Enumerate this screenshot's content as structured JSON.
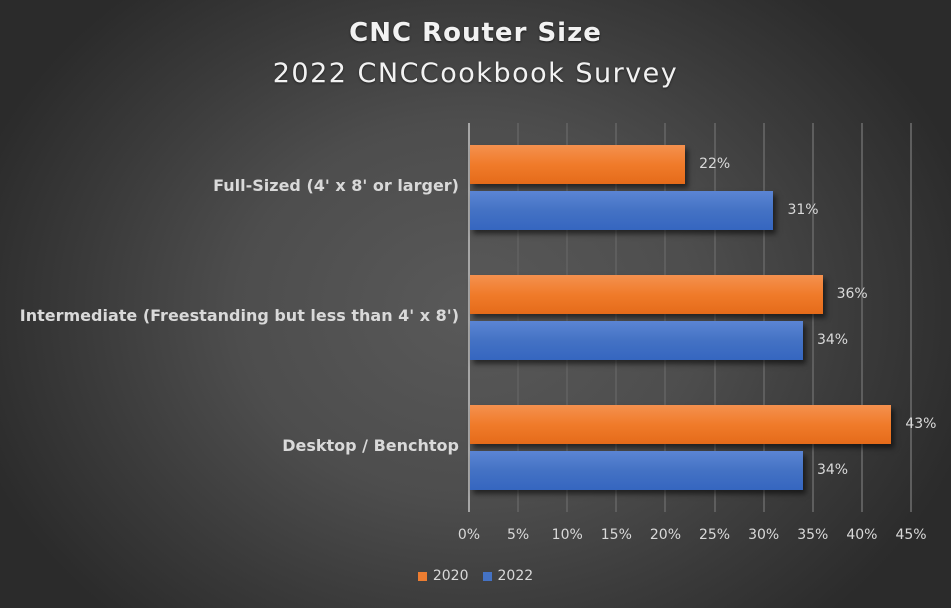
{
  "chart_data": {
    "type": "bar",
    "orientation": "horizontal",
    "title": "CNC Router Size",
    "subtitle": "2022 CNCCookbook Survey",
    "categories": [
      "Full-Sized (4' x 8' or larger)",
      "Intermediate (Freestanding but less than 4' x 8')",
      "Desktop / Benchtop"
    ],
    "series": [
      {
        "name": "2020",
        "color": "#ED7D31",
        "values": [
          22,
          36,
          43
        ],
        "labels": [
          "22%",
          "36%",
          "43%"
        ]
      },
      {
        "name": "2022",
        "color": "#4472C4",
        "values": [
          31,
          34,
          34
        ],
        "labels": [
          "31%",
          "34%",
          "34%"
        ]
      }
    ],
    "xlabel": "",
    "ylabel": "",
    "xlim": [
      0,
      45
    ],
    "x_ticks": [
      "0%",
      "5%",
      "10%",
      "15%",
      "20%",
      "25%",
      "30%",
      "35%",
      "40%",
      "45%"
    ],
    "grid": true,
    "legend_position": "bottom",
    "unit": "%"
  }
}
